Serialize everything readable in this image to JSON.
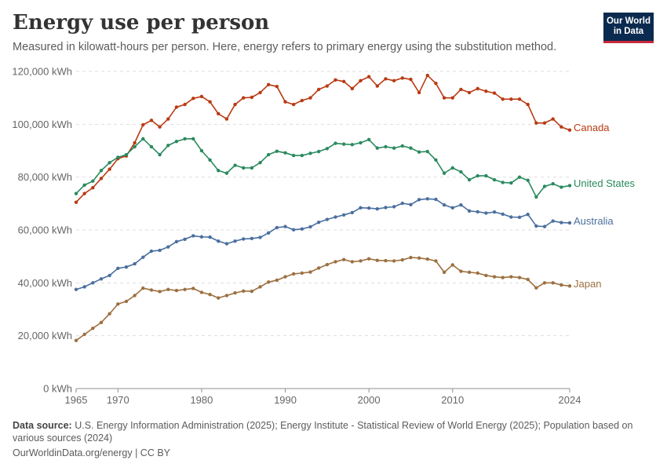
{
  "header": {
    "title": "Energy use per person",
    "subtitle": "Measured in kilowatt-hours per person. Here, energy refers to primary energy using the substitution method.",
    "logo_line1": "Our World",
    "logo_line2": "in Data"
  },
  "footer": {
    "source_label": "Data source:",
    "source_text": " U.S. Energy Information Administration (2025); Energy Institute - Statistical Review of World Energy (2025); Population based on various sources (2024)",
    "credit": "OurWorldinData.org/energy | CC BY"
  },
  "chart_data": {
    "type": "line",
    "title": "Energy use per person",
    "ylim": [
      0,
      120000
    ],
    "yticks": [
      0,
      20000,
      40000,
      60000,
      80000,
      100000,
      120000
    ],
    "ytick_labels": [
      "0 kWh",
      "20,000 kWh",
      "40,000 kWh",
      "60,000 kWh",
      "80,000 kWh",
      "100,000 kWh",
      "120,000 kWh"
    ],
    "xlim": [
      1965,
      2024
    ],
    "xticks": [
      1965,
      1970,
      1980,
      1990,
      2000,
      2010,
      2024
    ],
    "grid": true,
    "legend": "right-end labels",
    "x": [
      1965,
      1966,
      1967,
      1968,
      1969,
      1970,
      1971,
      1972,
      1973,
      1974,
      1975,
      1976,
      1977,
      1978,
      1979,
      1980,
      1981,
      1982,
      1983,
      1984,
      1985,
      1986,
      1987,
      1988,
      1989,
      1990,
      1991,
      1992,
      1993,
      1994,
      1995,
      1996,
      1997,
      1998,
      1999,
      2000,
      2001,
      2002,
      2003,
      2004,
      2005,
      2006,
      2007,
      2008,
      2009,
      2010,
      2011,
      2012,
      2013,
      2014,
      2015,
      2016,
      2017,
      2018,
      2019,
      2020,
      2021,
      2022,
      2023,
      2024
    ],
    "series": [
      {
        "name": "Canada",
        "color": "#b93a13",
        "values": [
          70500,
          73800,
          76000,
          79500,
          83000,
          87000,
          88000,
          93000,
          99800,
          101500,
          99000,
          102000,
          106500,
          107500,
          109800,
          110500,
          108500,
          104000,
          102000,
          107500,
          110000,
          110200,
          112000,
          115000,
          114300,
          108500,
          107500,
          109000,
          110000,
          113200,
          114500,
          116800,
          116200,
          113500,
          116500,
          118000,
          114500,
          117200,
          116500,
          117500,
          117000,
          112000,
          118500,
          115500,
          110000,
          110000,
          113200,
          112000,
          113500,
          112500,
          111800,
          109500,
          109500,
          109500,
          107500,
          100500,
          100500,
          102000,
          99000,
          97800
        ]
      },
      {
        "name": "United States",
        "color": "#2a8a5e",
        "values": [
          73800,
          77000,
          78500,
          82500,
          85500,
          87500,
          88500,
          91500,
          94500,
          91500,
          88500,
          92000,
          93500,
          94500,
          94500,
          90000,
          86500,
          82500,
          81500,
          84500,
          83500,
          83500,
          85500,
          88500,
          89800,
          89200,
          88200,
          88200,
          89000,
          89700,
          90800,
          92800,
          92500,
          92300,
          93000,
          94200,
          91000,
          91500,
          91000,
          91800,
          91000,
          89500,
          89700,
          86500,
          81500,
          83500,
          82000,
          79000,
          80500,
          80500,
          79000,
          78000,
          77800,
          80000,
          78800,
          72500,
          76500,
          77500,
          76200,
          76800
        ]
      },
      {
        "name": "Australia",
        "color": "#4a6f9e",
        "values": [
          37500,
          38500,
          40000,
          41500,
          42800,
          45500,
          46000,
          47200,
          49700,
          52000,
          52300,
          53600,
          55600,
          56500,
          57800,
          57400,
          57300,
          55800,
          54800,
          55800,
          56600,
          56800,
          57200,
          58900,
          60900,
          61300,
          60100,
          60400,
          61200,
          62900,
          64000,
          64900,
          65700,
          66600,
          68400,
          68300,
          68000,
          68500,
          68800,
          70100,
          69600,
          71500,
          71800,
          71600,
          69500,
          68400,
          69500,
          67200,
          66900,
          66400,
          66800,
          66000,
          64900,
          64800,
          65900,
          61500,
          61300,
          63400,
          62800,
          62700
        ]
      },
      {
        "name": "Japan",
        "color": "#9c7040",
        "values": [
          18200,
          20500,
          22800,
          25000,
          28300,
          32000,
          33000,
          35200,
          38000,
          37300,
          36700,
          37500,
          37100,
          37500,
          37900,
          36400,
          35600,
          34300,
          35200,
          36200,
          36900,
          36800,
          38500,
          40300,
          41000,
          42300,
          43400,
          43700,
          44100,
          45600,
          46900,
          48000,
          48800,
          48000,
          48300,
          49100,
          48500,
          48400,
          48300,
          48700,
          49600,
          49400,
          49000,
          48300,
          44000,
          46800,
          44400,
          44000,
          43700,
          42800,
          42300,
          42000,
          42300,
          42000,
          41300,
          38100,
          40000,
          40000,
          39200,
          38800
        ]
      }
    ]
  }
}
